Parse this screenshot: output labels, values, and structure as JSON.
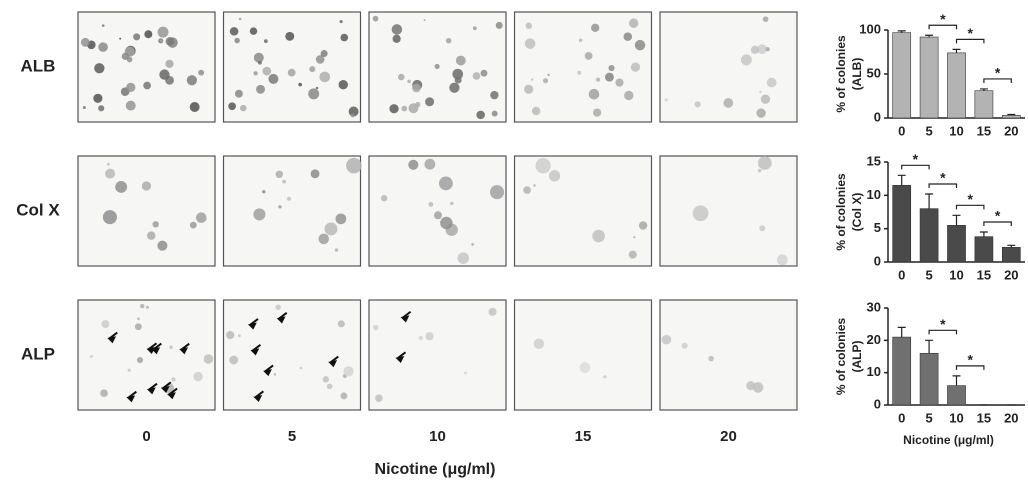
{
  "row_labels": [
    "ALB",
    "Col X",
    "ALP"
  ],
  "column_labels": [
    "0",
    "5",
    "10",
    "15",
    "20"
  ],
  "xlabel": "Nicotine (μg/ml)",
  "chart_data": [
    {
      "type": "bar",
      "ylabel": [
        "% of colonies",
        "(ALB)"
      ],
      "categories": [
        "0",
        "5",
        "10",
        "15",
        "20"
      ],
      "values": [
        97,
        92,
        74,
        31,
        3
      ],
      "errors": [
        2,
        2,
        4,
        2,
        1
      ],
      "color": "#b3b3b3",
      "ylim": [
        0,
        100
      ],
      "yticks": [
        0,
        50,
        100
      ],
      "annotations": [
        {
          "text": "*",
          "from": "5",
          "to": "10"
        },
        {
          "text": "*",
          "from": "10",
          "to": "15"
        },
        {
          "text": "*",
          "from": "15",
          "to": "20"
        }
      ]
    },
    {
      "type": "bar",
      "ylabel": [
        "% of colonies",
        "(Col X)"
      ],
      "categories": [
        "0",
        "5",
        "10",
        "15",
        "20"
      ],
      "values": [
        11.5,
        8,
        5.5,
        3.8,
        2.2
      ],
      "errors": [
        1.5,
        2.2,
        1.5,
        0.7,
        0.3
      ],
      "color": "#4a4a4a",
      "ylim": [
        0,
        15
      ],
      "yticks": [
        0,
        5,
        10,
        15
      ],
      "annotations": [
        {
          "text": "*",
          "from": "0",
          "to": "5"
        },
        {
          "text": "*",
          "from": "5",
          "to": "10"
        },
        {
          "text": "*",
          "from": "10",
          "to": "15"
        },
        {
          "text": "*",
          "from": "15",
          "to": "20"
        }
      ]
    },
    {
      "type": "bar",
      "ylabel": [
        "% of colonies",
        "(ALP)"
      ],
      "categories": [
        "0",
        "5",
        "10",
        "15",
        "20"
      ],
      "values": [
        21,
        16,
        6,
        0,
        0
      ],
      "errors": [
        3,
        4,
        3,
        0,
        0
      ],
      "color": "#707070",
      "ylim": [
        0,
        30
      ],
      "yticks": [
        0,
        10,
        20,
        30
      ],
      "xlabel": "Nicotine (μg/ml)",
      "annotations": [
        {
          "text": "*",
          "from": "5",
          "to": "10"
        },
        {
          "text": "*",
          "from": "10",
          "to": "15"
        }
      ]
    }
  ]
}
